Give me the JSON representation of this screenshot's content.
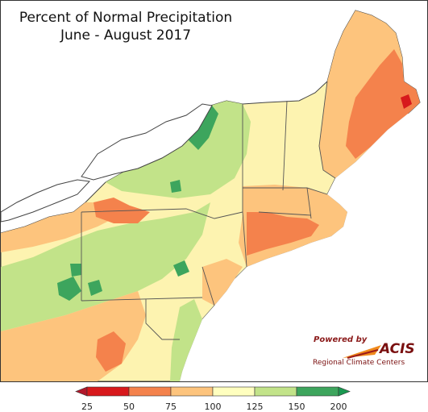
{
  "title": {
    "line1": "Percent of Normal Precipitation",
    "line2": "June - August 2017"
  },
  "logo": {
    "powered_by": "Powered by",
    "name": "ACIS",
    "subtitle": "Regional Climate Centers"
  },
  "legend": {
    "labels": [
      "25",
      "50",
      "75",
      "100",
      "125",
      "150",
      "200"
    ],
    "bins": [
      {
        "min": 25,
        "max": 50,
        "color": "#d7191c"
      },
      {
        "min": 50,
        "max": 75,
        "color": "#f4824c"
      },
      {
        "min": 75,
        "max": 100,
        "color": "#fdc47d"
      },
      {
        "min": 100,
        "max": 125,
        "color": "#ffffbf"
      },
      {
        "min": 125,
        "max": 150,
        "color": "#c2e389"
      },
      {
        "min": 150,
        "max": 200,
        "color": "#3da55d"
      }
    ],
    "below_color": "#b2182b",
    "above_color": "#1a9850"
  },
  "colors": {
    "water": "#ffffff",
    "boundary": "#555555"
  }
}
